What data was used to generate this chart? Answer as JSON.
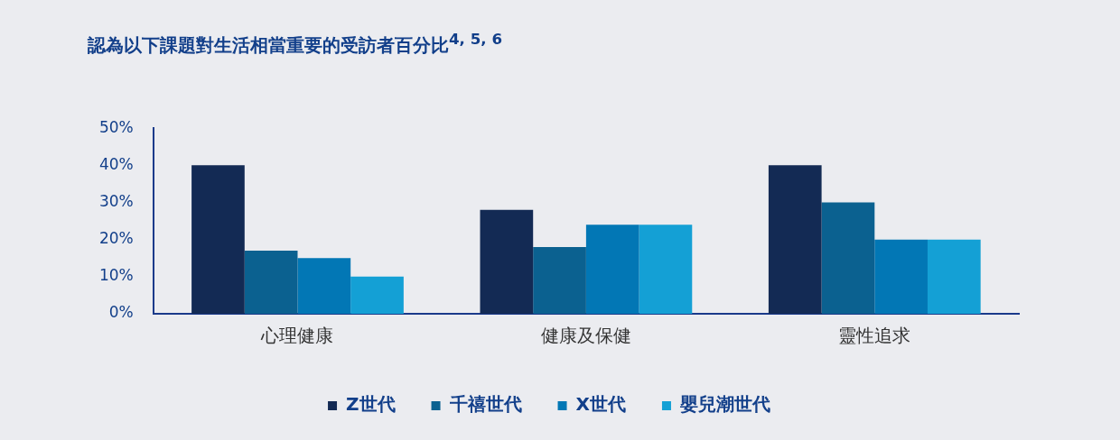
{
  "chart_data": {
    "type": "bar",
    "title": "認為以下課題對生活相當重要的受訪者百分比$^{4, 5, 6}$",
    "categories": [
      "心理健康",
      "健康及保健",
      "靈性追求"
    ],
    "series": [
      {
        "name": "Z世代",
        "color": "#132a54",
        "values": [
          40,
          28,
          40
        ]
      },
      {
        "name": "千禧世代",
        "color": "#0b6190",
        "values": [
          17,
          18,
          30
        ]
      },
      {
        "name": "X世代",
        "color": "#0277b5",
        "values": [
          15,
          24,
          20
        ]
      },
      {
        "name": "嬰兒潮世代",
        "color": "#14a0d5",
        "values": [
          10,
          24,
          20
        ]
      }
    ],
    "ylim": [
      0,
      50
    ],
    "yticks": [
      {
        "value": 0,
        "label": "0%"
      },
      {
        "value": 10,
        "label": "10%"
      },
      {
        "value": 20,
        "label": "20%"
      },
      {
        "value": 30,
        "label": "30%"
      },
      {
        "value": 40,
        "label": "40%"
      },
      {
        "value": 50,
        "label": "50%"
      }
    ],
    "grid": false,
    "legend": "bottom"
  }
}
